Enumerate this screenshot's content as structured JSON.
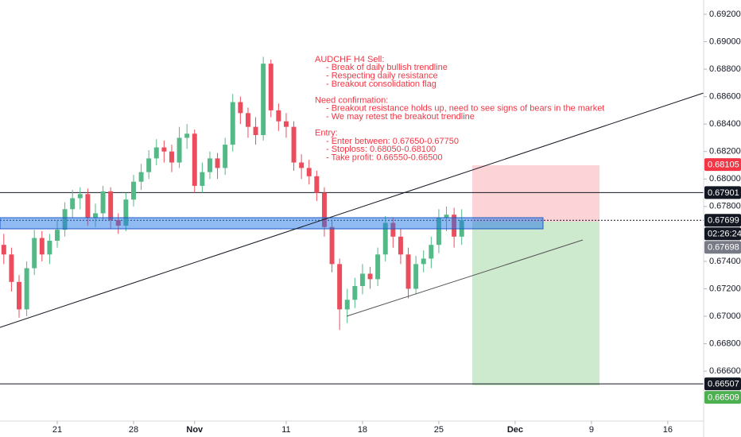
{
  "chart_data": {
    "type": "candlestick",
    "x": [
      -3.5,
      -3,
      -2.5,
      -2,
      -1.5,
      -1,
      -0.5,
      0,
      0.5,
      1,
      1.5,
      2,
      2.5,
      3,
      3.5,
      4,
      4.5,
      5,
      5.5,
      6,
      6.5,
      7,
      7.5,
      8,
      8.5,
      9,
      9.5,
      10,
      10.5,
      11,
      11.5,
      12,
      12.5,
      13,
      13.5,
      14,
      14.5,
      15,
      15.5,
      16,
      16.5,
      17,
      17.5,
      18,
      18.5,
      19,
      19.5,
      20,
      20.5,
      21,
      21.5,
      22,
      22.5,
      23,
      23.5,
      24,
      24.5,
      25,
      25.5,
      26,
      26.5
    ],
    "open": [
      0.6752,
      0.6745,
      0.6725,
      0.6705,
      0.6735,
      0.6757,
      0.6745,
      0.6755,
      0.6763,
      0.6778,
      0.6786,
      0.6789,
      0.6772,
      0.6775,
      0.6791,
      0.677,
      0.6766,
      0.6785,
      0.6798,
      0.6805,
      0.6815,
      0.6823,
      0.682,
      0.6812,
      0.683,
      0.6833,
      0.6795,
      0.6805,
      0.6815,
      0.6808,
      0.6825,
      0.6856,
      0.6848,
      0.6838,
      0.6832,
      0.6884,
      0.685,
      0.6842,
      0.6838,
      0.6812,
      0.6808,
      0.6802,
      0.679,
      0.6765,
      0.6738,
      0.6705,
      0.6712,
      0.6722,
      0.6731,
      0.6727,
      0.6745,
      0.6768,
      0.6758,
      0.6745,
      0.672,
      0.6738,
      0.6742,
      0.6752,
      0.6772,
      0.6774,
      0.6758
    ],
    "high": [
      0.676,
      0.675,
      0.673,
      0.674,
      0.6763,
      0.6762,
      0.676,
      0.677,
      0.6783,
      0.6792,
      0.6794,
      0.6793,
      0.6782,
      0.6795,
      0.6794,
      0.6775,
      0.679,
      0.6803,
      0.6811,
      0.6821,
      0.6829,
      0.6828,
      0.6825,
      0.6838,
      0.684,
      0.6836,
      0.6812,
      0.682,
      0.6819,
      0.683,
      0.6862,
      0.686,
      0.6852,
      0.6845,
      0.6889,
      0.6887,
      0.6855,
      0.6848,
      0.6842,
      0.6818,
      0.6814,
      0.6806,
      0.6794,
      0.677,
      0.6742,
      0.672,
      0.6728,
      0.6738,
      0.6736,
      0.675,
      0.6773,
      0.6772,
      0.6764,
      0.675,
      0.6744,
      0.6748,
      0.6758,
      0.6778,
      0.678,
      0.6779,
      0.6778
    ],
    "low": [
      0.6738,
      0.6718,
      0.6699,
      0.67,
      0.673,
      0.674,
      0.6738,
      0.675,
      0.6758,
      0.6772,
      0.6778,
      0.6766,
      0.6765,
      0.677,
      0.6764,
      0.676,
      0.6762,
      0.678,
      0.6792,
      0.68,
      0.681,
      0.6812,
      0.6805,
      0.6808,
      0.6822,
      0.679,
      0.679,
      0.68,
      0.68,
      0.6803,
      0.682,
      0.684,
      0.683,
      0.6825,
      0.6828,
      0.6845,
      0.6835,
      0.683,
      0.6806,
      0.68,
      0.6796,
      0.6784,
      0.6758,
      0.6732,
      0.669,
      0.6695,
      0.6706,
      0.6716,
      0.672,
      0.6722,
      0.674,
      0.675,
      0.6738,
      0.6713,
      0.6716,
      0.6732,
      0.6735,
      0.6746,
      0.6762,
      0.675,
      0.6752
    ],
    "close": [
      0.6745,
      0.6725,
      0.6705,
      0.6735,
      0.6757,
      0.6745,
      0.6755,
      0.6763,
      0.6778,
      0.6786,
      0.6789,
      0.6772,
      0.6775,
      0.6791,
      0.677,
      0.6766,
      0.6785,
      0.6798,
      0.6805,
      0.6815,
      0.6823,
      0.682,
      0.6812,
      0.683,
      0.6833,
      0.6795,
      0.6805,
      0.6815,
      0.6808,
      0.6825,
      0.6856,
      0.6848,
      0.6838,
      0.6832,
      0.6884,
      0.685,
      0.6842,
      0.6838,
      0.6812,
      0.6808,
      0.6802,
      0.679,
      0.6765,
      0.6738,
      0.6705,
      0.6712,
      0.6722,
      0.6731,
      0.6727,
      0.6745,
      0.6768,
      0.6758,
      0.6745,
      0.672,
      0.6738,
      0.6742,
      0.6752,
      0.6772,
      0.6774,
      0.6758,
      0.677
    ],
    "up_color": "#53b987",
    "down_color": "#eb4d5c",
    "xlim": [
      -3.75,
      42.35
    ],
    "xticks": [
      {
        "value": 0,
        "label": "21"
      },
      {
        "value": 5,
        "label": "28"
      },
      {
        "value": 9,
        "label": "Nov"
      },
      {
        "value": 15,
        "label": "11"
      },
      {
        "value": 20,
        "label": "18"
      },
      {
        "value": 25,
        "label": "25"
      },
      {
        "value": 30,
        "label": "Dec"
      },
      {
        "value": 35,
        "label": "9"
      },
      {
        "value": 40,
        "label": "16"
      }
    ],
    "ylim": [
      0.66236,
      0.69304
    ],
    "yticks": [
      {
        "value": 0.692,
        "label": "0.69200"
      },
      {
        "value": 0.69,
        "label": "0.69000"
      },
      {
        "value": 0.688,
        "label": "0.68800"
      },
      {
        "value": 0.686,
        "label": "0.68600"
      },
      {
        "value": 0.684,
        "label": "0.68400"
      },
      {
        "value": 0.682,
        "label": "0.68200"
      },
      {
        "value": 0.68,
        "label": "0.68000"
      },
      {
        "value": 0.678,
        "label": "0.67800"
      },
      {
        "value": 0.674,
        "label": "0.67400"
      },
      {
        "value": 0.672,
        "label": "0.67200"
      },
      {
        "value": 0.67,
        "label": "0.67000"
      },
      {
        "value": 0.668,
        "label": "0.66800"
      },
      {
        "value": 0.666,
        "label": "0.66600"
      }
    ],
    "price_labels": [
      {
        "value": 0.68105,
        "color": "#f23645"
      },
      {
        "value": 0.67901,
        "color": "#131722",
        "line": "solid"
      },
      {
        "value": 0.67699,
        "color": "#131722",
        "line": "dotted"
      },
      {
        "value": 0.67698,
        "color": "#787b86"
      },
      {
        "value": 0.66507,
        "color": "#131722",
        "line": "solid"
      },
      {
        "value": 0.66509,
        "color": "#4caf50"
      }
    ],
    "countdown": "02:26:24",
    "annotation": [
      {
        "heading": "AUDCHF H4 Sell:",
        "items": [
          "- Break of daily bullish trendline",
          "- Respecting daily resistance",
          "- Breakout consolidation flag"
        ]
      },
      {
        "heading": "Need confirmation:",
        "items": [
          "- Breakout resistance holds up, need to see signs of bears in the market",
          "- We may retest the breakout trendline"
        ]
      },
      {
        "heading": "Entry:",
        "items": [
          "- Enter between: 0.67650-0.67750",
          "- Stoploss: 0.68050-0.68100",
          "- Take profit: 0.66550-0.66500"
        ]
      }
    ]
  }
}
